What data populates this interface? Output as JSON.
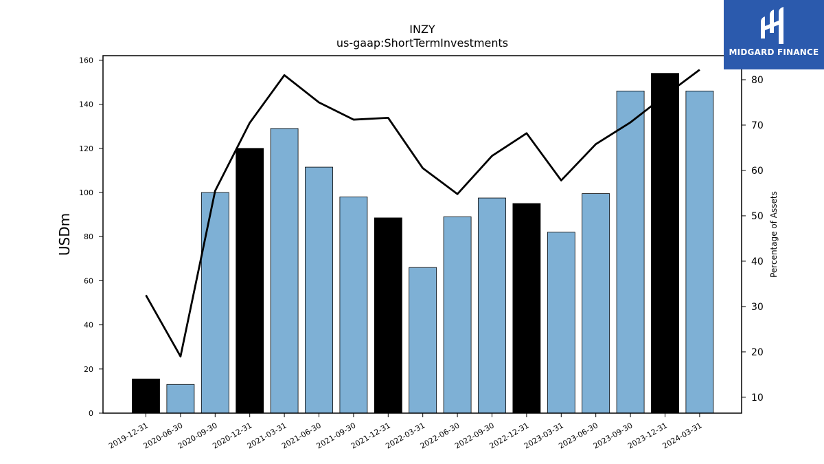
{
  "chart_data": {
    "type": "bar",
    "title": "INZY",
    "subtitle": "us-gaap:ShortTermInvestments",
    "ylabel": "USDm",
    "y2label": "Percentage of Assets",
    "categories": [
      "2019-12-31",
      "2020-06-30",
      "2020-09-30",
      "2020-12-31",
      "2021-03-31",
      "2021-06-30",
      "2021-09-30",
      "2021-12-31",
      "2022-03-31",
      "2022-06-30",
      "2022-09-30",
      "2022-12-31",
      "2023-03-31",
      "2023-06-30",
      "2023-09-30",
      "2023-12-31",
      "2024-03-31"
    ],
    "bar_values": [
      15.5,
      13.0,
      100.0,
      120.0,
      129.0,
      111.5,
      98.0,
      88.5,
      66.0,
      89.0,
      97.5,
      95.0,
      82.0,
      99.5,
      146.0,
      154.0,
      146.0
    ],
    "bar_colors": [
      "#000000",
      "#7eb0d5",
      "#7eb0d5",
      "#000000",
      "#7eb0d5",
      "#7eb0d5",
      "#7eb0d5",
      "#000000",
      "#7eb0d5",
      "#7eb0d5",
      "#7eb0d5",
      "#000000",
      "#7eb0d5",
      "#7eb0d5",
      "#7eb0d5",
      "#000000",
      "#7eb0d5"
    ],
    "line_values": [
      32.5,
      19.0,
      55.5,
      70.5,
      81.0,
      75.0,
      71.2,
      71.6,
      60.5,
      54.8,
      63.2,
      68.2,
      57.8,
      65.8,
      70.6,
      76.5,
      82.2
    ],
    "ylim": [
      0,
      162
    ],
    "y2lim": [
      6.5,
      85.3
    ],
    "yticks": [
      0,
      20,
      40,
      60,
      80,
      100,
      120,
      140,
      160
    ],
    "y2ticks": [
      10,
      20,
      30,
      40,
      50,
      60,
      70,
      80
    ]
  },
  "logo": {
    "text": "MIDGARD FINANCE",
    "color": "#2b5aad"
  }
}
